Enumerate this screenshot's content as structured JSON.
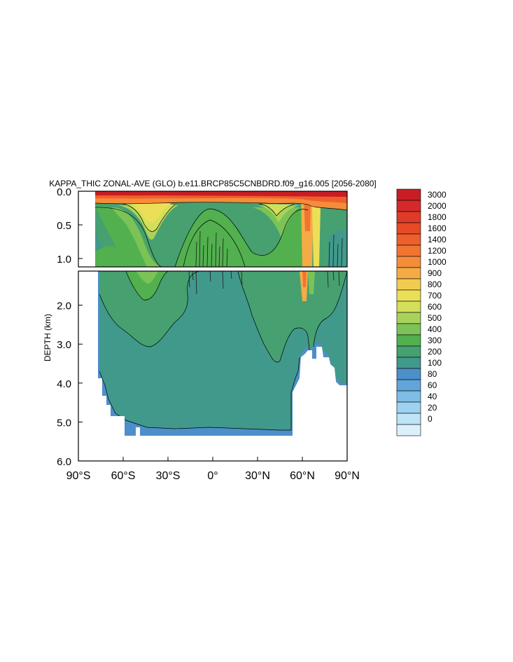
{
  "chart_data": {
    "type": "heatmap",
    "title": "KAPPA_THIC ZONAL-AVE (GLO) b.e11.BRCP85C5CNBDRD.f09_g16.005 [2056-2080]",
    "xlabel": "",
    "ylabel": "DEPTH (km)",
    "x_ticks": [
      "90°S",
      "60°S",
      "30°S",
      "0°",
      "30°N",
      "60°N",
      "90°N"
    ],
    "x_tick_values": [
      -90,
      -60,
      -30,
      0,
      30,
      60,
      90
    ],
    "xlim": [
      -90,
      90
    ],
    "top_panel": {
      "ylim": [
        0.0,
        1.125
      ],
      "y_ticks": [
        "0.0",
        "0.5",
        "1.0"
      ],
      "y_tick_values": [
        0.0,
        0.5,
        1.0
      ]
    },
    "bottom_panel": {
      "ylim": [
        1.125,
        6.0
      ],
      "y_ticks": [
        "2.0",
        "3.0",
        "4.0",
        "5.0",
        "6.0"
      ],
      "y_tick_values": [
        2.0,
        3.0,
        4.0,
        5.0,
        6.0
      ]
    },
    "colorbar": {
      "levels": [
        "3000",
        "2000",
        "1800",
        "1600",
        "1400",
        "1200",
        "1000",
        "900",
        "800",
        "700",
        "600",
        "500",
        "400",
        "300",
        "200",
        "100",
        "80",
        "60",
        "40",
        "20",
        "0"
      ],
      "colors": [
        "#c81e23",
        "#d62a2a",
        "#e03a28",
        "#e84a27",
        "#ef5f2b",
        "#f27433",
        "#f58c3a",
        "#f5ab45",
        "#f2cc4f",
        "#ecdf58",
        "#d3df5a",
        "#a9d25a",
        "#7bc356",
        "#52b04f",
        "#46a070",
        "#41998c",
        "#4d8fca",
        "#61a5da",
        "#7dbde6",
        "#9fd2f0",
        "#bfe4f8",
        "#dcf0fc"
      ]
    },
    "regions": [
      {
        "level_band": "1000-3000",
        "where": "thin surface layer, 0-0.1 km, all latitudes"
      },
      {
        "level_band": "600-900",
        "where": "upper 0.1-0.7 km near 40°S and 30°N-60°N"
      },
      {
        "level_band": "300-500",
        "where": "0.2-3.2 km, broad mid-depth"
      },
      {
        "level_band": "200-300",
        "where": "deep water 2-5.3 km"
      },
      {
        "level_band": "100-200",
        "where": "bottom layer near seafloor"
      }
    ]
  }
}
